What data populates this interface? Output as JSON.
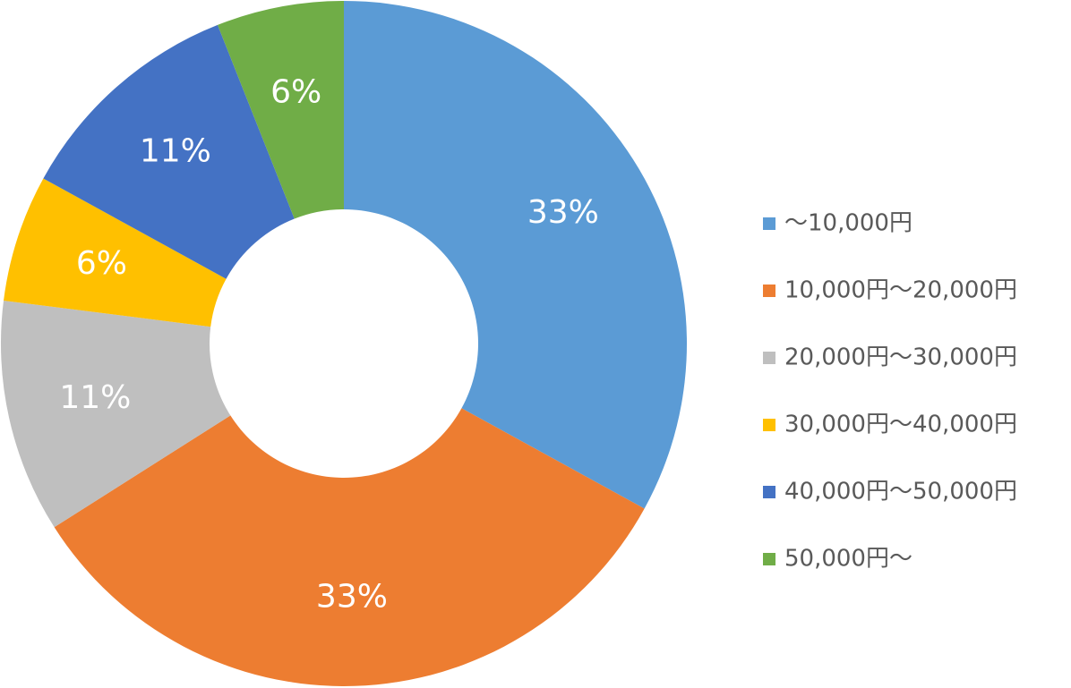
{
  "chart_data": {
    "type": "pie",
    "donut": true,
    "categories": [
      "～10,000円",
      "10,000円～20,000円",
      "20,000円～30,000円",
      "30,000円～40,000円",
      "40,000円～50,000円",
      "50,000円～"
    ],
    "values": [
      33,
      33,
      11,
      6,
      11,
      6
    ],
    "value_labels": [
      "33%",
      "33%",
      "11%",
      "6%",
      "11%",
      "6%"
    ],
    "colors": [
      "#5b9bd5",
      "#ed7d31",
      "#bfbfbf",
      "#ffc000",
      "#4472c4",
      "#70ad47"
    ],
    "legend": "right"
  }
}
